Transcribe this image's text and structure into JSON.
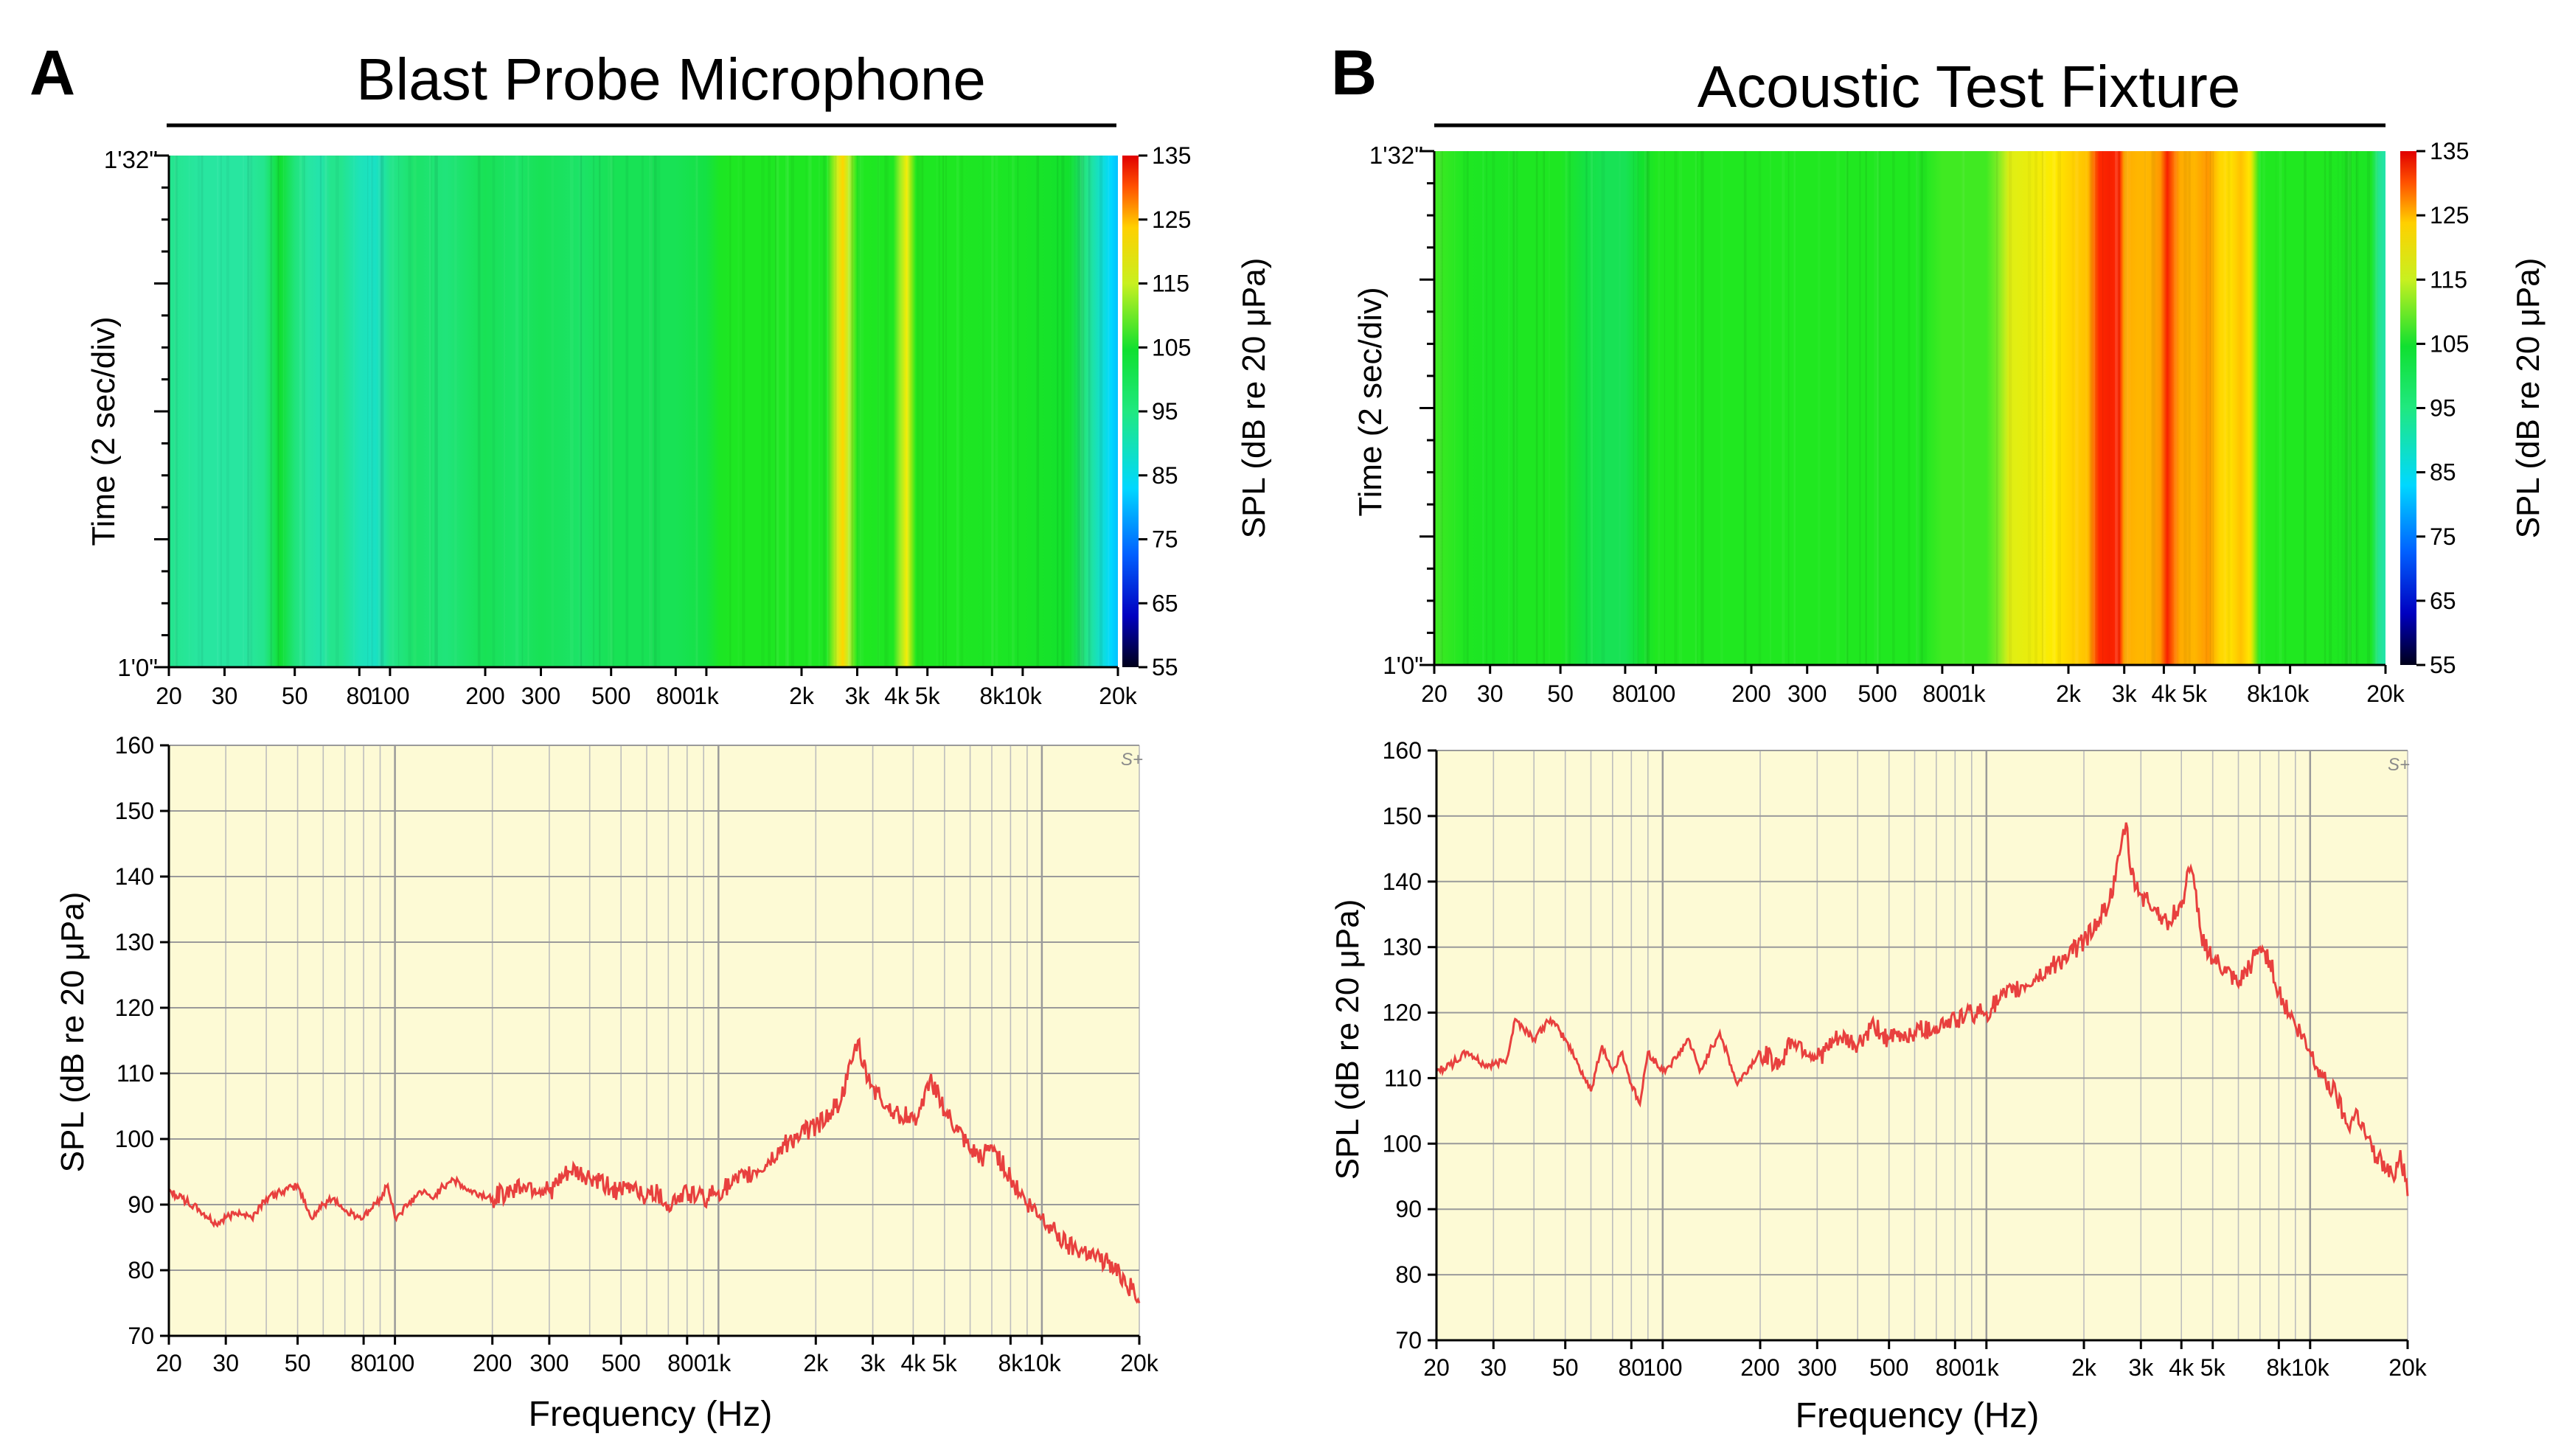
{
  "figure": {
    "panel_a_letter": "A",
    "panel_b_letter": "B",
    "panel_a_title": "Blast Probe Microphone",
    "panel_b_title": "Acoustic Test Fixture",
    "watermark": "S+"
  },
  "shared_axes": {
    "freq_ticks": [
      "20",
      "30",
      "50",
      "80",
      "100",
      "200",
      "300",
      "500",
      "800",
      "1k",
      "2k",
      "3k",
      "4k",
      "5k",
      "8k",
      "10k",
      "20k"
    ],
    "freq_tick_values": [
      20,
      30,
      50,
      80,
      100,
      200,
      300,
      500,
      800,
      1000,
      2000,
      3000,
      4000,
      5000,
      8000,
      10000,
      20000
    ],
    "time_label": "Time (2 sec/div)",
    "time_ticks": [
      "1'32\"",
      "1'0\""
    ],
    "colorbar_label": "SPL (dB re 20 μPa)",
    "colorbar_ticks": [
      "135",
      "125",
      "115",
      "105",
      "95",
      "85",
      "75",
      "65",
      "55"
    ],
    "spl_label": "SPL (dB re 20 μPa)",
    "spl_ticks": [
      "160",
      "150",
      "140",
      "130",
      "120",
      "110",
      "100",
      "90",
      "80",
      "70"
    ],
    "xlabel": "Frequency (Hz)"
  },
  "colors": {
    "trace": "#e8403e",
    "plot_bg": "#fdfad5",
    "grid_major": "#9a9a9a",
    "grid_minor": "#bdbdbd",
    "title_rule": "#000000"
  },
  "chart_data": [
    {
      "id": "A-spectrogram",
      "type": "heatmap",
      "title": "Blast Probe Microphone",
      "xlabel": "",
      "ylabel": "Time (2 sec/div)",
      "x_scale": "log",
      "xlim": [
        20,
        20000
      ],
      "clim": [
        55,
        135
      ],
      "colorbar_label": "SPL (dB re 20 μPa)",
      "band_freq_hz": [
        20,
        25,
        30,
        35,
        40,
        45,
        50,
        55,
        60,
        65,
        70,
        80,
        90,
        100,
        120,
        150,
        200,
        250,
        300,
        400,
        500,
        600,
        700,
        800,
        1000,
        1100,
        1200,
        1500,
        2000,
        2400,
        2600,
        2700,
        2800,
        3000,
        3500,
        3900,
        4100,
        4300,
        4600,
        5000,
        6000,
        8000,
        10000,
        12000,
        14000,
        16000,
        18000,
        19000,
        20000
      ],
      "band_spl_db": [
        92,
        91,
        91,
        91,
        92,
        97,
        93,
        91,
        90,
        92,
        92,
        89,
        88,
        92,
        94,
        93,
        95,
        94,
        95,
        94,
        95,
        95,
        95,
        95,
        96,
        103,
        104,
        104,
        104,
        104,
        112,
        118,
        111,
        105,
        104,
        104,
        109,
        115,
        105,
        104,
        104,
        103,
        102,
        100,
        98,
        92,
        86,
        83,
        81
      ]
    },
    {
      "id": "A-spectrum",
      "type": "line",
      "title": "",
      "xlabel": "Frequency (Hz)",
      "ylabel": "SPL (dB re 20 μPa)",
      "x_scale": "log",
      "xlim": [
        20,
        20000
      ],
      "ylim": [
        70,
        160
      ],
      "yticks": [
        70,
        80,
        90,
        100,
        110,
        120,
        130,
        140,
        150,
        160
      ],
      "series": [
        {
          "name": "Blast Probe Microphone",
          "x": [
            20,
            22,
            25,
            28,
            30,
            33,
            36,
            40,
            45,
            50,
            55,
            60,
            65,
            70,
            80,
            90,
            95,
            100,
            110,
            120,
            130,
            150,
            170,
            200,
            250,
            300,
            350,
            400,
            450,
            500,
            550,
            600,
            650,
            700,
            800,
            900,
            1000,
            1100,
            1200,
            1400,
            1600,
            1800,
            2000,
            2200,
            2400,
            2500,
            2600,
            2700,
            2800,
            3000,
            3300,
            3600,
            4000,
            4300,
            4500,
            4800,
            5000,
            5500,
            6000,
            6500,
            7000,
            8000,
            9000,
            10000,
            11000,
            12000,
            14000,
            16000,
            18000,
            20000
          ],
          "y": [
            92,
            91,
            89,
            87,
            88,
            89,
            88,
            91,
            92,
            93,
            88,
            90,
            91,
            89,
            88,
            91,
            93,
            88,
            90,
            92,
            91,
            94,
            92,
            91,
            93,
            92,
            95,
            94,
            93,
            92,
            93,
            91,
            92,
            90,
            92,
            91,
            92,
            93,
            94,
            96,
            99,
            101,
            102,
            104,
            106,
            109,
            112,
            115,
            111,
            108,
            105,
            104,
            103,
            105,
            109,
            107,
            104,
            101,
            98,
            97,
            99,
            94,
            90,
            88,
            86,
            84,
            83,
            81,
            79,
            75
          ]
        }
      ]
    },
    {
      "id": "B-spectrogram",
      "type": "heatmap",
      "title": "Acoustic Test Fixture",
      "xlabel": "",
      "ylabel": "Time (2 sec/div)",
      "x_scale": "log",
      "xlim": [
        20,
        20000
      ],
      "clim": [
        55,
        135
      ],
      "colorbar_label": "SPL (dB re 20 μPa)",
      "band_freq_hz": [
        20,
        25,
        30,
        40,
        50,
        60,
        70,
        80,
        90,
        100,
        150,
        200,
        300,
        400,
        500,
        600,
        700,
        800,
        1000,
        1100,
        1200,
        1300,
        1500,
        1800,
        2000,
        2300,
        2500,
        2700,
        2900,
        3000,
        3300,
        3600,
        3900,
        4100,
        4300,
        4500,
        5000,
        5500,
        6000,
        6500,
        7000,
        7500,
        8000,
        10000,
        12000,
        15000,
        18000,
        19000,
        20000
      ],
      "band_spl_db": [
        106,
        104,
        103,
        104,
        104,
        96,
        95,
        95,
        98,
        105,
        105,
        105,
        105,
        105,
        105,
        105,
        105,
        106,
        106,
        106,
        108,
        113,
        114,
        116,
        118,
        120,
        130,
        131,
        130,
        122,
        121,
        121,
        124,
        131,
        126,
        122,
        121,
        124,
        118,
        117,
        120,
        116,
        105,
        105,
        105,
        104,
        103,
        92,
        90
      ]
    },
    {
      "id": "B-spectrum",
      "type": "line",
      "title": "",
      "xlabel": "Frequency (Hz)",
      "ylabel": "SPL (dB re 20 μPa)",
      "x_scale": "log",
      "xlim": [
        20,
        20000
      ],
      "ylim": [
        70,
        160
      ],
      "yticks": [
        70,
        80,
        90,
        100,
        110,
        120,
        130,
        140,
        150,
        160
      ],
      "series": [
        {
          "name": "Acoustic Test Fixture",
          "x": [
            20,
            22,
            25,
            28,
            30,
            33,
            35,
            40,
            45,
            50,
            55,
            60,
            65,
            70,
            75,
            80,
            85,
            90,
            100,
            110,
            120,
            130,
            150,
            170,
            200,
            230,
            250,
            300,
            350,
            400,
            450,
            500,
            600,
            700,
            800,
            900,
            1000,
            1100,
            1200,
            1400,
            1600,
            1800,
            2000,
            2200,
            2400,
            2500,
            2600,
            2700,
            2800,
            3000,
            3300,
            3600,
            4000,
            4200,
            4400,
            4600,
            5000,
            5500,
            6000,
            6500,
            7000,
            7500,
            8000,
            9000,
            10000,
            11000,
            12000,
            13000,
            14000,
            15000,
            16000,
            18000,
            19000,
            20000
          ],
          "y": [
            111,
            112,
            114,
            112,
            112,
            113,
            119,
            116,
            119,
            116,
            112,
            108,
            115,
            111,
            114,
            109,
            106,
            114,
            111,
            113,
            116,
            111,
            117,
            109,
            114,
            112,
            116,
            113,
            116,
            115,
            118,
            116,
            117,
            118,
            119,
            120,
            120,
            122,
            123,
            125,
            127,
            129,
            131,
            134,
            137,
            140,
            145,
            149,
            141,
            138,
            136,
            134,
            136,
            142,
            139,
            132,
            128,
            126,
            124,
            127,
            130,
            128,
            123,
            118,
            114,
            110,
            108,
            103,
            105,
            101,
            98,
            95,
            99,
            92
          ]
        }
      ]
    }
  ]
}
